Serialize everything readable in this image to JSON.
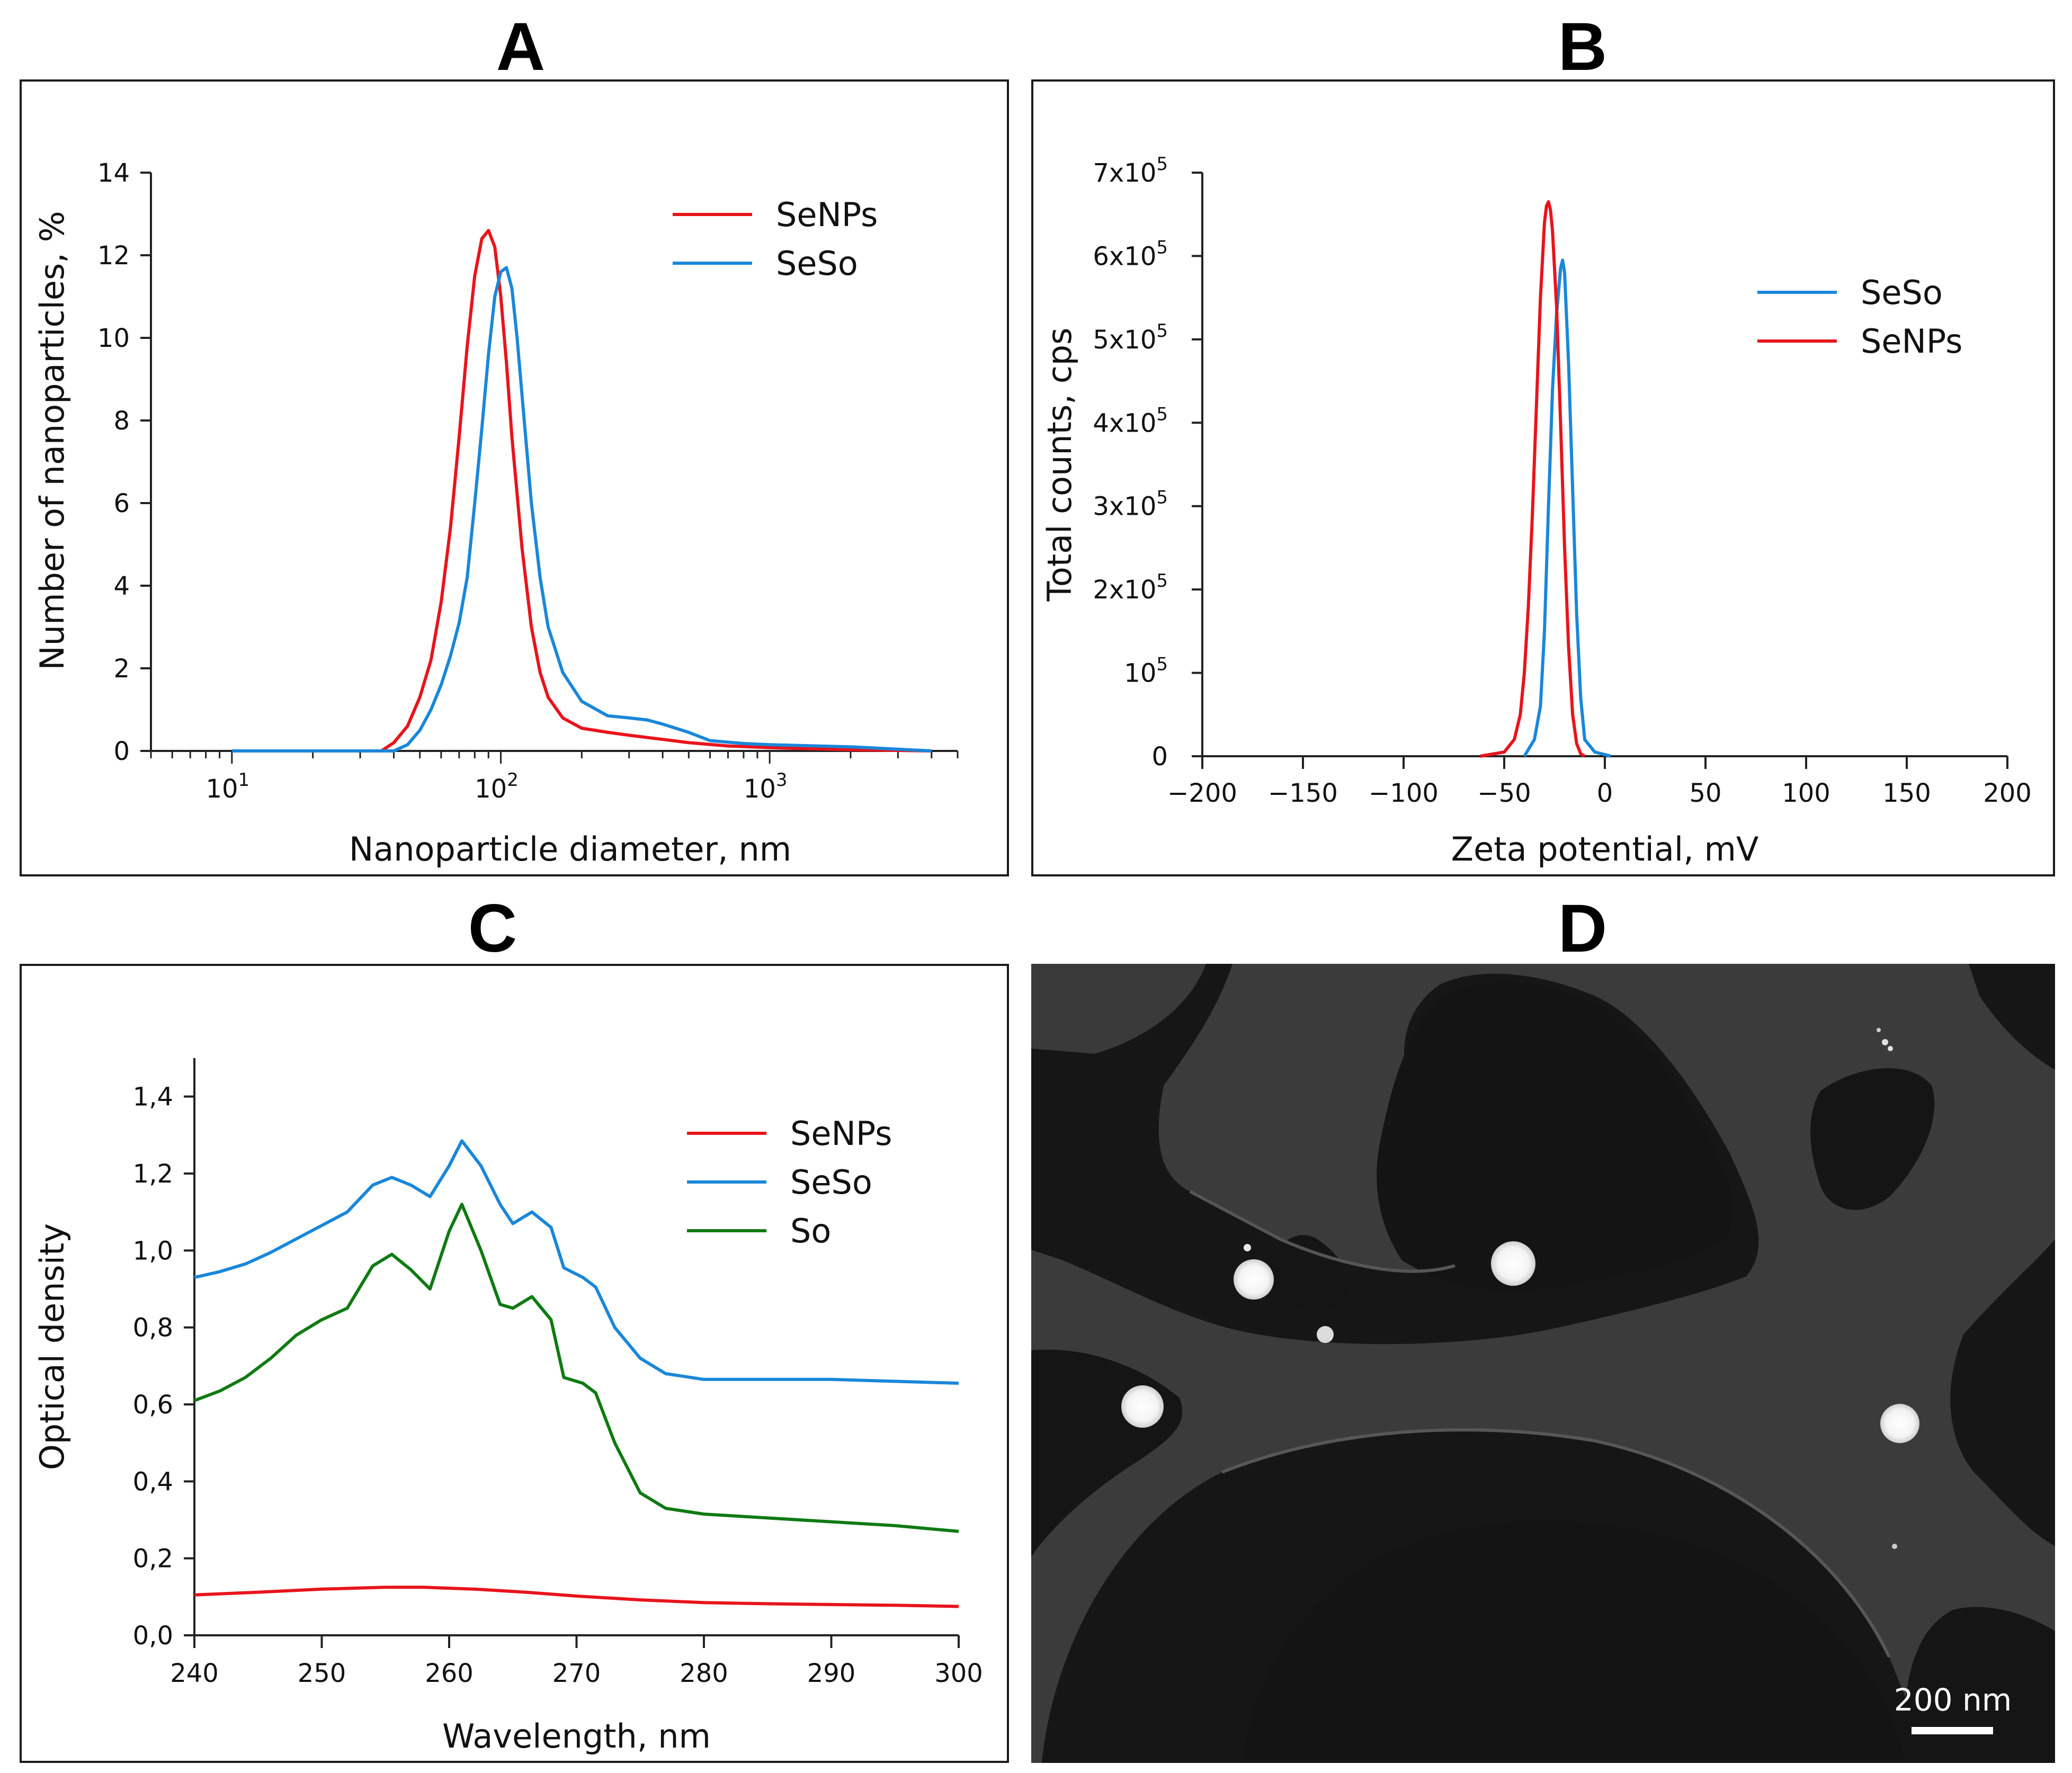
{
  "panels": {
    "a": "A",
    "b": "B",
    "c": "C",
    "d": "D"
  },
  "colors": {
    "red": "#e8141c",
    "blue": "#1a87d9",
    "green": "#0f7a12"
  },
  "chart_data": [
    {
      "id": "A",
      "type": "line",
      "xscale": "log",
      "xlabel": "Nanoparticle diameter, nm",
      "ylabel": "Number of nanoparticles, %",
      "xlim": [
        5,
        5000
      ],
      "ylim": [
        0,
        14
      ],
      "yticks": [
        "0",
        "2",
        "4",
        "6",
        "8",
        "10",
        "12",
        "14"
      ],
      "xticks": [
        {
          "base": "10",
          "exp": "1"
        },
        {
          "base": "10",
          "exp": "2"
        },
        {
          "base": "10",
          "exp": "3"
        }
      ],
      "legend": [
        "SeNPs",
        "SeSo"
      ],
      "series": [
        {
          "name": "SeNPs",
          "color": "#e8141c",
          "x": [
            10,
            36,
            40,
            45,
            50,
            55,
            60,
            65,
            70,
            75,
            80,
            85,
            90,
            95,
            100,
            105,
            110,
            120,
            130,
            140,
            150,
            170,
            200,
            250,
            300,
            400,
            500,
            700,
            1000,
            2000,
            4000
          ],
          "y": [
            0,
            0,
            0.2,
            0.6,
            1.3,
            2.2,
            3.6,
            5.4,
            7.6,
            9.8,
            11.5,
            12.4,
            12.6,
            12.2,
            11.0,
            9.4,
            7.6,
            4.9,
            3.0,
            1.9,
            1.3,
            0.8,
            0.55,
            0.45,
            0.38,
            0.28,
            0.2,
            0.12,
            0.08,
            0.03,
            0
          ]
        },
        {
          "name": "SeSo",
          "color": "#1a87d9",
          "x": [
            10,
            40,
            45,
            50,
            55,
            60,
            65,
            70,
            75,
            80,
            85,
            90,
            95,
            100,
            105,
            110,
            115,
            120,
            130,
            140,
            150,
            170,
            200,
            250,
            300,
            350,
            400,
            500,
            600,
            800,
            1000,
            2000,
            4000
          ],
          "y": [
            0,
            0,
            0.15,
            0.5,
            1.0,
            1.6,
            2.3,
            3.1,
            4.2,
            6.0,
            7.8,
            9.6,
            11.0,
            11.6,
            11.7,
            11.2,
            10.0,
            8.6,
            6.0,
            4.2,
            3.0,
            1.9,
            1.2,
            0.85,
            0.8,
            0.75,
            0.65,
            0.45,
            0.25,
            0.18,
            0.15,
            0.1,
            0
          ]
        }
      ]
    },
    {
      "id": "B",
      "type": "line",
      "xlabel": "Zeta potential, mV",
      "ylabel": "Total counts, cps",
      "xlim": [
        -200,
        200
      ],
      "ylim": [
        0,
        700000
      ],
      "xticks": [
        "-200",
        "-150",
        "-100",
        "-50",
        "0",
        "50",
        "100",
        "150",
        "200"
      ],
      "yticks": [
        {
          "value": 0,
          "label": "0",
          "exp": ""
        },
        {
          "value": 100000,
          "label": "10",
          "exp": "5"
        },
        {
          "value": 200000,
          "label": "2x10",
          "exp": "5"
        },
        {
          "value": 300000,
          "label": "3x10",
          "exp": "5"
        },
        {
          "value": 400000,
          "label": "4x10",
          "exp": "5"
        },
        {
          "value": 500000,
          "label": "5x10",
          "exp": "5"
        },
        {
          "value": 600000,
          "label": "6x10",
          "exp": "5"
        },
        {
          "value": 700000,
          "label": "7x10",
          "exp": "5"
        }
      ],
      "legend": [
        "SeSo",
        "SeNPs"
      ],
      "series": [
        {
          "name": "SeSo",
          "color": "#1a87d9",
          "x": [
            -40,
            -35,
            -32,
            -30,
            -28,
            -26,
            -24,
            -22,
            -21,
            -20,
            -18,
            -16,
            -14,
            -12,
            -10,
            -5,
            0,
            3
          ],
          "y": [
            0,
            20000,
            60000,
            150000,
            300000,
            440000,
            530000,
            585000,
            595000,
            580000,
            470000,
            320000,
            170000,
            70000,
            20000,
            5000,
            2000,
            0
          ]
        },
        {
          "name": "SeNPs",
          "color": "#e8141c",
          "x": [
            -62,
            -50,
            -45,
            -42,
            -40,
            -38,
            -36,
            -34,
            -32,
            -30,
            -29,
            -28,
            -27,
            -26,
            -24,
            -22,
            -20,
            -18,
            -16,
            -14,
            -12,
            -10
          ],
          "y": [
            0,
            5000,
            20000,
            50000,
            100000,
            180000,
            290000,
            420000,
            550000,
            640000,
            660000,
            665000,
            655000,
            630000,
            540000,
            400000,
            250000,
            130000,
            50000,
            15000,
            3000,
            0
          ]
        }
      ]
    },
    {
      "id": "C",
      "type": "line",
      "xlabel": "Wavelength, nm",
      "ylabel": "Optical density",
      "xlim": [
        240,
        300
      ],
      "ylim": [
        0,
        1.5
      ],
      "xticks": [
        "240",
        "250",
        "260",
        "270",
        "280",
        "290",
        "300"
      ],
      "yticks": [
        {
          "value": 0,
          "label": "0,0"
        },
        {
          "value": 0.2,
          "label": "0,2"
        },
        {
          "value": 0.4,
          "label": "0,4"
        },
        {
          "value": 0.6,
          "label": "0,6"
        },
        {
          "value": 0.8,
          "label": "0,8"
        },
        {
          "value": 1.0,
          "label": "1,0"
        },
        {
          "value": 1.2,
          "label": "1,2"
        },
        {
          "value": 1.4,
          "label": "1,4"
        }
      ],
      "legend": [
        "SeNPs",
        "SeSo",
        "So"
      ],
      "series": [
        {
          "name": "SeNPs",
          "color": "#e8141c",
          "x": [
            240,
            245,
            250,
            255,
            258,
            262,
            266,
            270,
            275,
            280,
            285,
            290,
            295,
            300
          ],
          "y": [
            0.105,
            0.112,
            0.12,
            0.125,
            0.125,
            0.12,
            0.112,
            0.102,
            0.092,
            0.085,
            0.082,
            0.08,
            0.078,
            0.075
          ]
        },
        {
          "name": "SeSo",
          "color": "#1a87d9",
          "x": [
            240,
            242,
            244,
            246,
            248,
            250,
            252,
            254,
            255.5,
            257,
            258.5,
            260,
            261,
            262.5,
            264,
            265,
            266.5,
            268,
            269,
            270.5,
            271.5,
            273,
            275,
            277,
            280,
            285,
            290,
            295,
            300
          ],
          "y": [
            0.93,
            0.945,
            0.965,
            0.995,
            1.03,
            1.065,
            1.1,
            1.17,
            1.19,
            1.17,
            1.14,
            1.22,
            1.285,
            1.22,
            1.12,
            1.07,
            1.1,
            1.06,
            0.955,
            0.93,
            0.905,
            0.8,
            0.72,
            0.68,
            0.665,
            0.665,
            0.665,
            0.66,
            0.655
          ]
        },
        {
          "name": "So",
          "color": "#0f7a12",
          "x": [
            240,
            242,
            244,
            246,
            248,
            250,
            252,
            254,
            255.5,
            257,
            258.5,
            260,
            261,
            262.5,
            264,
            265,
            266.5,
            268,
            269,
            270.5,
            271.5,
            273,
            275,
            277,
            280,
            285,
            290,
            295,
            300
          ],
          "y": [
            0.61,
            0.635,
            0.67,
            0.72,
            0.78,
            0.82,
            0.85,
            0.96,
            0.99,
            0.95,
            0.9,
            1.05,
            1.12,
            1.0,
            0.86,
            0.85,
            0.88,
            0.82,
            0.67,
            0.655,
            0.63,
            0.5,
            0.37,
            0.33,
            0.315,
            0.305,
            0.295,
            0.285,
            0.27
          ]
        }
      ]
    }
  ],
  "micrograph": {
    "scale_bar": "200 nm"
  }
}
